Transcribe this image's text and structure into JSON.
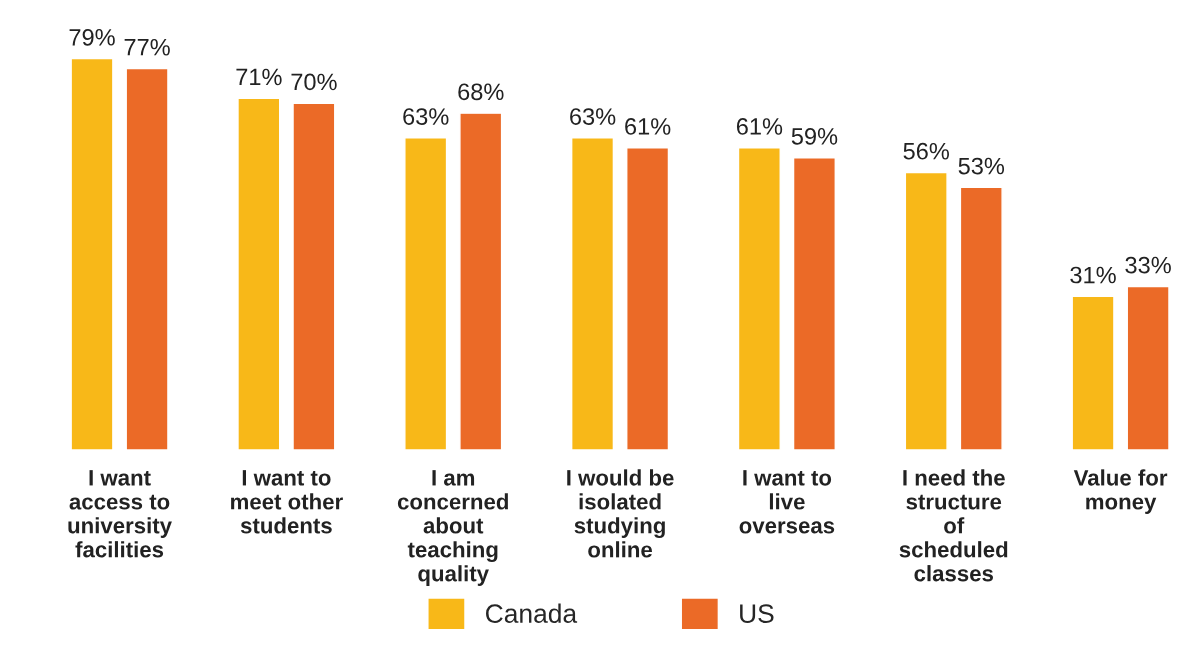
{
  "chart_data": {
    "type": "bar",
    "categories": [
      "I want access to university facilities",
      "I want to meet other students",
      "I am concerned about teaching quality",
      "I would be isolated studying online",
      "I want to live overseas",
      "I need the structure of scheduled classes",
      "Value for money"
    ],
    "series": [
      {
        "name": "Canada",
        "color": "#f8b818",
        "values": [
          79,
          71,
          63,
          63,
          61,
          56,
          31
        ],
        "value_labels": [
          "79%",
          "71%",
          "63%",
          "63%",
          "61%",
          "56%",
          "31%"
        ]
      },
      {
        "name": "US",
        "color": "#eb6a27",
        "values": [
          77,
          70,
          68,
          61,
          59,
          53,
          33
        ],
        "value_labels": [
          "77%",
          "70%",
          "68%",
          "61%",
          "59%",
          "53%",
          "33%"
        ]
      }
    ],
    "legend": "bottom",
    "grid": false,
    "tick_labels": "x"
  }
}
